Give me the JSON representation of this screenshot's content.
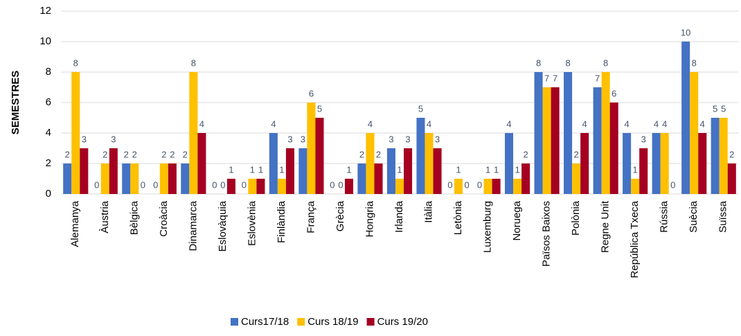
{
  "chart_data": {
    "type": "bar",
    "y_label": "SEMESTRES",
    "categories": [
      "Alemanya",
      "Àustria",
      "Bèlgica",
      "Croàcia",
      "Dinamarca",
      "Eslovàquia",
      "Eslovènia",
      "Finlàndia",
      "França",
      "Grècia",
      "Hongria",
      "Irlanda",
      "Itàlia",
      "Letònia",
      "Luxemburg",
      "Noruega",
      "Països Baixos",
      "Polònia",
      "Regne Unit",
      "República Txeca",
      "Rússia",
      "Suècia",
      "Suïssa"
    ],
    "series": [
      {
        "name": "Curs17/18",
        "color": "#4472c4",
        "values": [
          2,
          0,
          2,
          0,
          2,
          0,
          0,
          4,
          3,
          0,
          2,
          3,
          5,
          0,
          0,
          4,
          8,
          8,
          7,
          4,
          4,
          10,
          5
        ]
      },
      {
        "name": "Curs 18/19",
        "color": "#ffc000",
        "values": [
          8,
          2,
          2,
          2,
          8,
          0,
          1,
          1,
          6,
          0,
          4,
          1,
          4,
          1,
          1,
          1,
          7,
          2,
          8,
          1,
          4,
          8,
          5
        ]
      },
      {
        "name": "Curs 19/20",
        "color": "#a50021",
        "values": [
          3,
          3,
          0,
          2,
          4,
          1,
          1,
          3,
          5,
          1,
          2,
          3,
          3,
          0,
          1,
          2,
          7,
          4,
          6,
          3,
          0,
          4,
          2
        ]
      }
    ],
    "ylim": [
      0,
      12
    ],
    "yticks": [
      0,
      2,
      4,
      6,
      8,
      10,
      12
    ],
    "grid": true,
    "legend": "bottom"
  }
}
